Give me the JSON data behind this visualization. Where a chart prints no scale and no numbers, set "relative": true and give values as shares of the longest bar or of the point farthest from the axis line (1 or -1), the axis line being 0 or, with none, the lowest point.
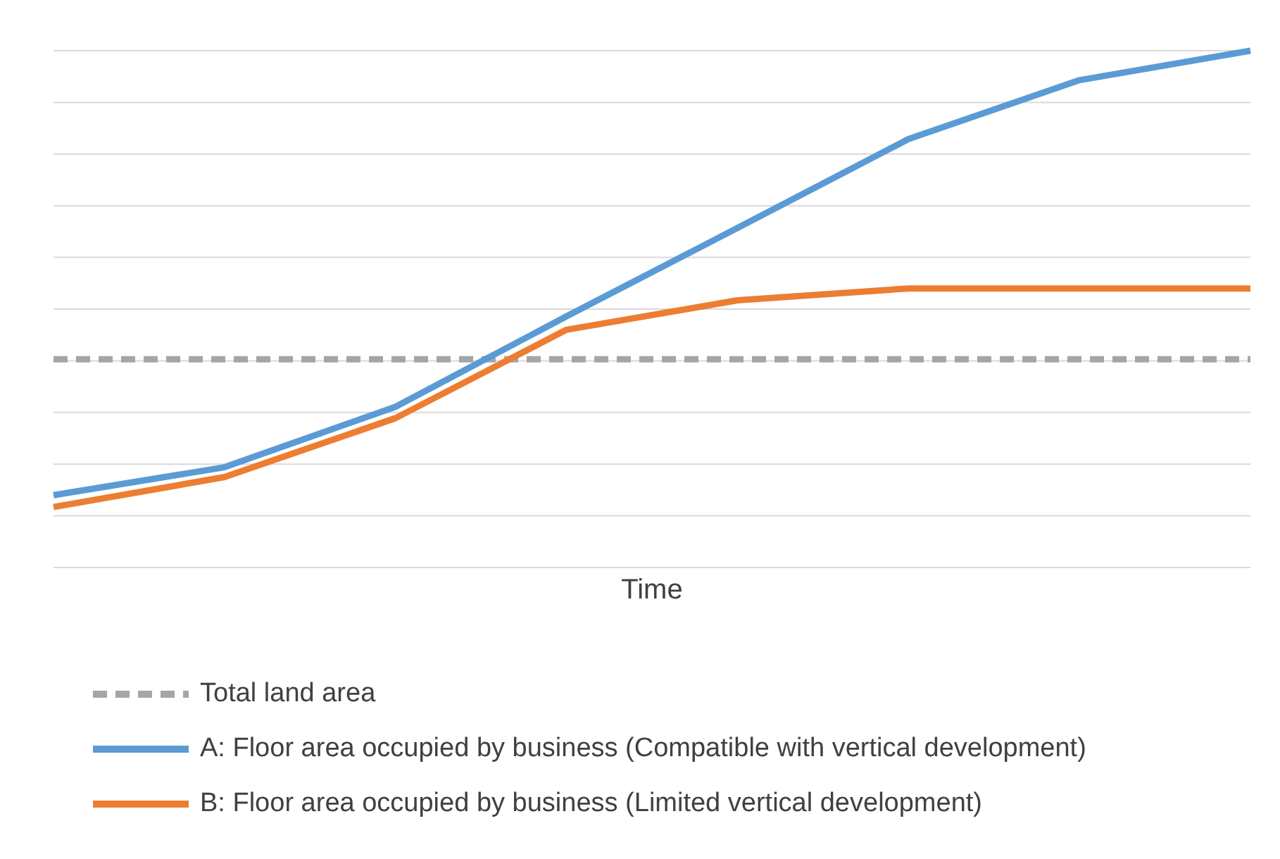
{
  "chart_data": {
    "type": "line",
    "relative": true,
    "xlabel": "Time",
    "categories": [
      null,
      null,
      null,
      null,
      null,
      null,
      null,
      null
    ],
    "grid": "y",
    "legend": "bottom",
    "marker": "none",
    "series": [
      {
        "name": "Total land area",
        "color": "#a5a5a5",
        "line_style": "dashed",
        "values": [
          0.403,
          0.403,
          0.403,
          0.403,
          0.403,
          0.403,
          0.403,
          0.403
        ]
      },
      {
        "name": "A: Floor area occupied by business (Compatible with vertical development)",
        "color": "#5b9bd5",
        "values": [
          0.14,
          0.194,
          0.311,
          0.486,
          0.657,
          0.829,
          0.943,
          1
        ]
      },
      {
        "name": "B: Floor area occupied by business (Limited vertical development)",
        "color": "#ed7d31",
        "values": [
          0.117,
          0.175,
          0.289,
          0.46,
          0.517,
          0.54,
          0.54,
          0.54
        ]
      }
    ]
  }
}
